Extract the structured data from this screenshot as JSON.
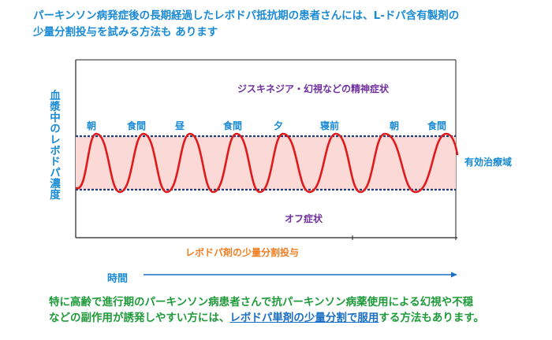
{
  "title": {
    "line1": "パーキンソン病発症後の長期経過したレボドパ抵抗期の患者さんには、L-ドパ含有製剤の",
    "line2": "少量分割投与を試みる方法も あります"
  },
  "y_axis_label": "血漿中のレボドパ濃度",
  "upper_zone_label": "ジスキネジア・幻視などの精神症状",
  "meal_labels": [
    "朝",
    "食間",
    "昼",
    "食間",
    "夕",
    "寝前",
    "朝",
    "食間"
  ],
  "therapeutic_zone_label": "有効治療域",
  "lower_zone_label": "オフ症状",
  "dosing_label": "レボドパ剤の少量分割投与",
  "x_axis_label": "時間",
  "bottom_text": {
    "part1": "特に高齢で進行期のパーキンソン病患者さんで抗パーキンソン病薬使用による幻視や不穏",
    "part2": "などの副作用が誘発しやすい方には、",
    "underlined": "レボドパ単剤の少量分割で服用",
    "part3": "する方法もあります。"
  },
  "colors": {
    "title_blue": "#1a8ad4",
    "purple": "#7030a0",
    "orange": "#ef7d22",
    "green": "#1e9a3a",
    "curve_red": "#e0191b",
    "zone_fill": "#fbd9d6",
    "dashed_navy": "#1f3f7a"
  }
}
